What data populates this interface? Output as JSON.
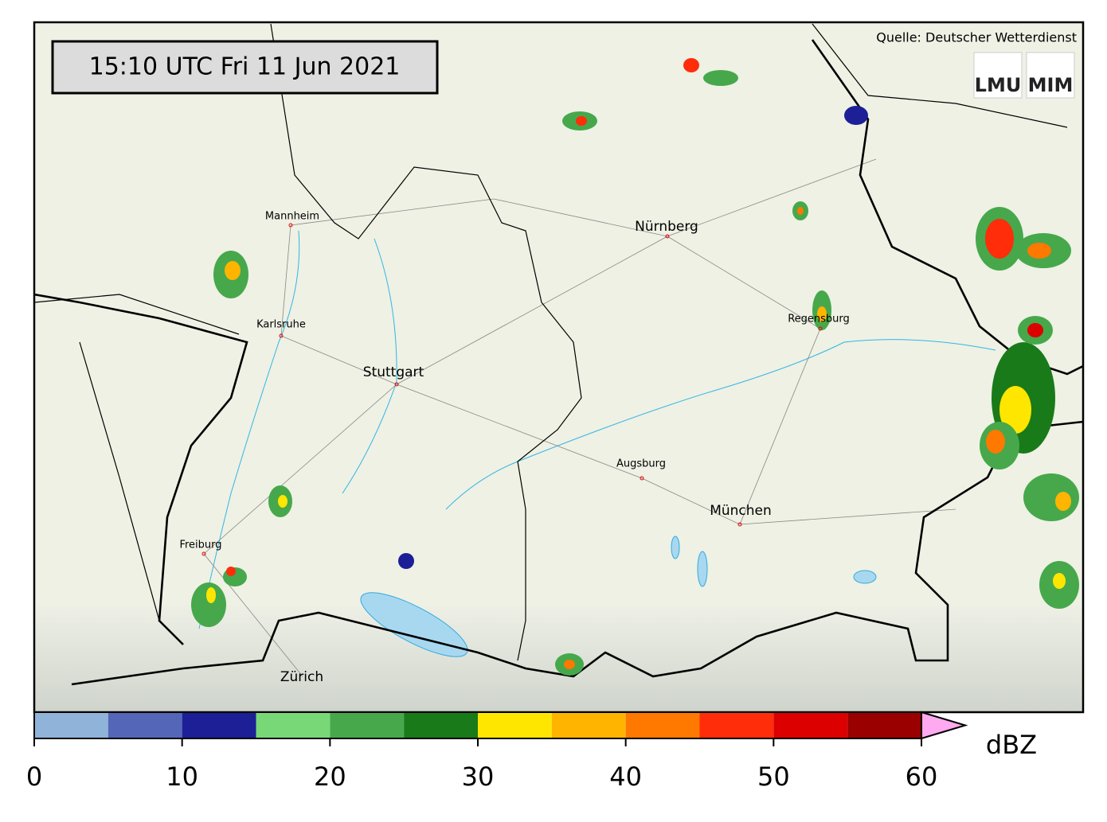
{
  "header": {
    "timestamp": "15:10 UTC  Fri 11 Jun 2021",
    "source": "Quelle: Deutscher Wetterdienst"
  },
  "logos": [
    "LMU",
    "MIM"
  ],
  "cities": [
    "Mannheim",
    "Karlsruhe",
    "Stuttgart",
    "Nürnberg",
    "Regensburg",
    "Augsburg",
    "München",
    "Freiburg",
    "Zürich"
  ],
  "colorbar": {
    "unit": "dBZ",
    "bounds": [
      0,
      5,
      10,
      15,
      20,
      25,
      30,
      35,
      40,
      45,
      50,
      55,
      60
    ],
    "colors": [
      "#8fb3d9",
      "#5366b8",
      "#1c1f96",
      "#78d878",
      "#46a84b",
      "#197a19",
      "#ffe600",
      "#ffb400",
      "#ff7800",
      "#ff2d0a",
      "#dc0000",
      "#9b0000"
    ],
    "extend_color": "#ffaaf0",
    "ticks": [
      0,
      10,
      20,
      30,
      40,
      50,
      60
    ]
  }
}
